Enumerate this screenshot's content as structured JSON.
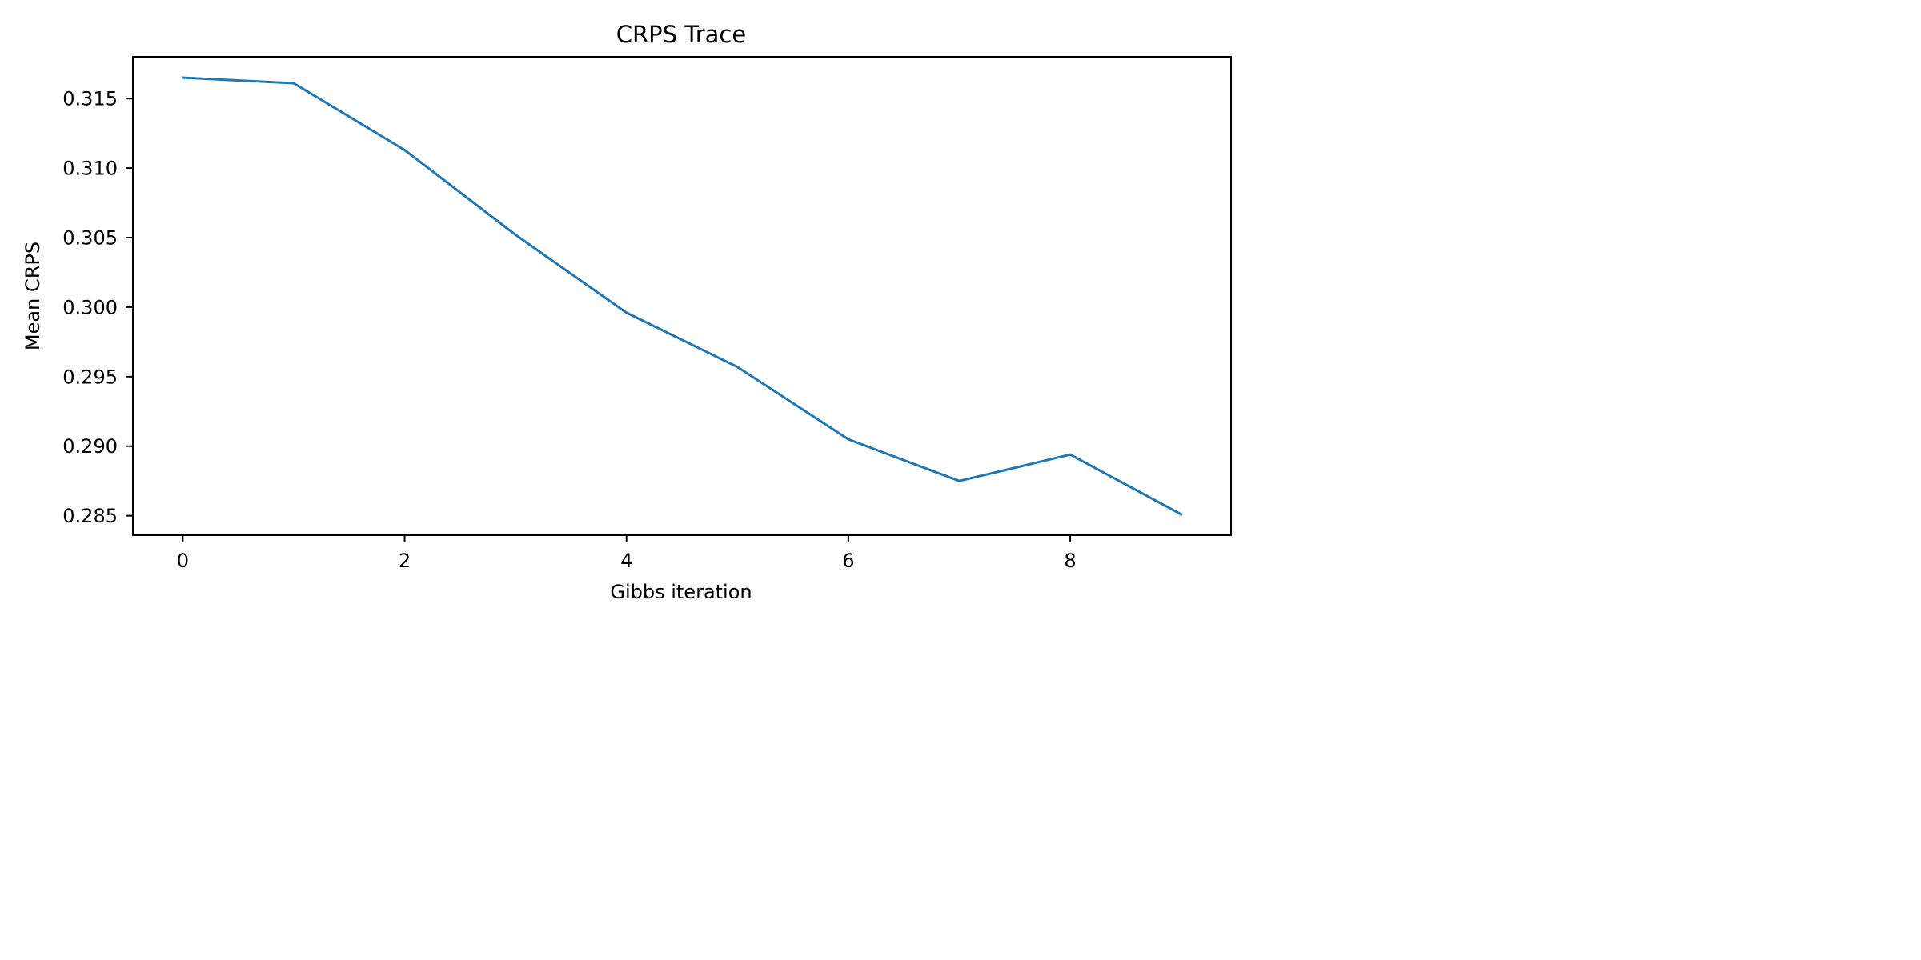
{
  "chart_data": {
    "type": "line",
    "title": "CRPS Trace",
    "xlabel": "Gibbs iteration",
    "ylabel": "Mean CRPS",
    "xlim": [
      -0.45,
      9.45
    ],
    "ylim": [
      0.2836,
      0.318
    ],
    "xticks": [
      0,
      2,
      4,
      6,
      8
    ],
    "xtick_labels": [
      "0",
      "2",
      "4",
      "6",
      "8"
    ],
    "yticks": [
      0.285,
      0.29,
      0.295,
      0.3,
      0.305,
      0.31,
      0.315
    ],
    "ytick_labels": [
      "0.285",
      "0.290",
      "0.295",
      "0.300",
      "0.305",
      "0.310",
      "0.315"
    ],
    "grid": false,
    "legend": false,
    "series": [
      {
        "color": "#1f77b4",
        "x": [
          0,
          1,
          2,
          3,
          4,
          5,
          6,
          7,
          8,
          9
        ],
        "values": [
          0.3165,
          0.3161,
          0.3113,
          0.3052,
          0.2996,
          0.2957,
          0.2905,
          0.2875,
          0.2894,
          0.2851
        ]
      }
    ]
  }
}
